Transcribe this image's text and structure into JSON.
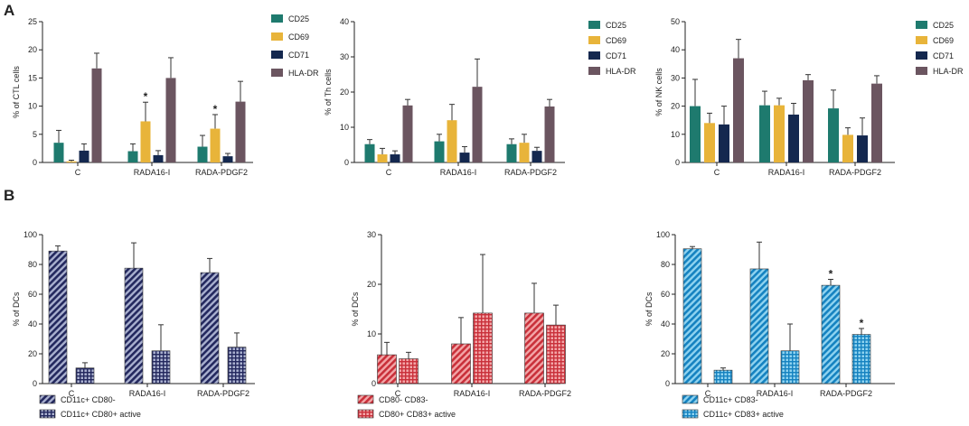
{
  "panel_labels": [
    "A",
    "B"
  ],
  "colors": {
    "CD25": "#1e7a6e",
    "CD69": "#e8b43a",
    "CD71": "#14284f",
    "HLA-DR": "#6b5560",
    "navy_stripe": "#23285e",
    "navy_bg": "#a9b0cf",
    "red_stripe": "#c9303a",
    "red_bg": "#f3a6a8",
    "blue_stripe": "#1582c0",
    "blue_bg": "#8fd3f0"
  },
  "chart_data": [
    {
      "id": "A1",
      "type": "bar",
      "ylabel": "% of CTL cells",
      "ylim": [
        0,
        25
      ],
      "yticks": [
        0,
        5,
        10,
        15,
        20,
        25
      ],
      "categories": [
        "C",
        "RADA16-I",
        "RADA-PDGF2"
      ],
      "legend": [
        "CD25",
        "CD69",
        "CD71",
        "HLA-DR"
      ],
      "series": [
        {
          "name": "CD25",
          "values": [
            3.5,
            2.0,
            2.8
          ],
          "errors": [
            2.2,
            1.3,
            2.0
          ]
        },
        {
          "name": "CD69",
          "values": [
            0.2,
            7.3,
            6.0
          ],
          "errors": [
            0.2,
            3.4,
            2.5
          ]
        },
        {
          "name": "CD71",
          "values": [
            2.1,
            1.3,
            1.1
          ],
          "errors": [
            1.2,
            0.8,
            0.5
          ]
        },
        {
          "name": "HLA-DR",
          "values": [
            16.7,
            15.0,
            10.8
          ],
          "errors": [
            2.7,
            3.6,
            3.6
          ]
        }
      ],
      "significance": [
        "*",
        "*"
      ]
    },
    {
      "id": "A2",
      "type": "bar",
      "ylabel": "% of Th cells",
      "ylim": [
        0,
        40
      ],
      "yticks": [
        0,
        10,
        20,
        30,
        40
      ],
      "categories": [
        "C",
        "RADA16-I",
        "RADA-PDGF2"
      ],
      "legend": [
        "CD25",
        "CD69",
        "CD71",
        "HLA-DR"
      ],
      "series": [
        {
          "name": "CD25",
          "values": [
            5.2,
            6.0,
            5.2
          ],
          "errors": [
            1.3,
            2.0,
            1.5
          ]
        },
        {
          "name": "CD69",
          "values": [
            2.3,
            12.0,
            5.6
          ],
          "errors": [
            1.7,
            4.5,
            2.4
          ]
        },
        {
          "name": "CD71",
          "values": [
            2.3,
            2.8,
            3.3
          ],
          "errors": [
            1.0,
            1.7,
            1.0
          ]
        },
        {
          "name": "HLA-DR",
          "values": [
            16.2,
            21.5,
            15.9
          ],
          "errors": [
            1.7,
            7.9,
            2.0
          ]
        }
      ]
    },
    {
      "id": "A3",
      "type": "bar",
      "ylabel": "% of NK cells",
      "ylim": [
        0,
        50
      ],
      "yticks": [
        0,
        10,
        20,
        30,
        40,
        50
      ],
      "categories": [
        "C",
        "RADA16-I",
        "RADA-PDGF2"
      ],
      "legend": [
        "CD25",
        "CD69",
        "CD71",
        "HLA-DR"
      ],
      "series": [
        {
          "name": "CD25",
          "values": [
            20.0,
            20.3,
            19.2
          ],
          "errors": [
            9.5,
            5.0,
            6.5
          ]
        },
        {
          "name": "CD69",
          "values": [
            14.0,
            20.3,
            9.8
          ],
          "errors": [
            3.5,
            2.5,
            2.5
          ]
        },
        {
          "name": "CD71",
          "values": [
            13.5,
            17.0,
            9.6
          ],
          "errors": [
            6.5,
            4.0,
            6.2
          ]
        },
        {
          "name": "HLA-DR",
          "values": [
            37.0,
            29.2,
            28.0
          ],
          "errors": [
            6.7,
            2.0,
            2.8
          ]
        }
      ]
    },
    {
      "id": "B1",
      "type": "bar",
      "ylabel": "% of DCs",
      "ylim": [
        0,
        100
      ],
      "yticks": [
        0,
        20,
        40,
        60,
        80,
        100
      ],
      "categories": [
        "C",
        "RADA16-I",
        "RADA-PDGF2"
      ],
      "legend": [
        "CD11c+ CD80-",
        "CD11c+ CD80+ active"
      ],
      "series": [
        {
          "name": "CD11c+ CD80-",
          "values": [
            89.0,
            77.5,
            74.5
          ],
          "errors": [
            3.5,
            17.0,
            9.5
          ]
        },
        {
          "name": "CD11c+ CD80+ active",
          "values": [
            10.5,
            22.0,
            24.5
          ],
          "errors": [
            3.5,
            17.5,
            9.5
          ]
        }
      ]
    },
    {
      "id": "B2",
      "type": "bar",
      "ylabel": "% of DCs",
      "ylim": [
        0,
        30
      ],
      "yticks": [
        0,
        10,
        20,
        30
      ],
      "categories": [
        "C",
        "RADA16-I",
        "RADA-PDGF2"
      ],
      "legend": [
        "CD80- CD83-",
        "CD80+ CD83+ active"
      ],
      "series": [
        {
          "name": "CD80- CD83-",
          "values": [
            5.8,
            8.0,
            14.2
          ],
          "errors": [
            2.5,
            5.3,
            6.0
          ]
        },
        {
          "name": "CD80+ CD83+ active",
          "values": [
            5.0,
            14.2,
            11.8
          ],
          "errors": [
            1.3,
            11.8,
            4.0
          ]
        }
      ]
    },
    {
      "id": "B3",
      "type": "bar",
      "ylabel": "% of DCs",
      "ylim": [
        0,
        100
      ],
      "yticks": [
        0,
        20,
        40,
        60,
        80,
        100
      ],
      "categories": [
        "C",
        "RADA16-I",
        "RADA-PDGF2"
      ],
      "legend": [
        "CD11c+ CD83-",
        "CD11c+ CD83+ active"
      ],
      "series": [
        {
          "name": "CD11c+ CD83-",
          "values": [
            90.5,
            77.0,
            66.0
          ],
          "errors": [
            1.5,
            18.0,
            4.0
          ]
        },
        {
          "name": "CD11c+ CD83+ active",
          "values": [
            9.0,
            22.0,
            33.0
          ],
          "errors": [
            1.5,
            18.0,
            4.0
          ]
        }
      ],
      "significance": [
        "*",
        "*"
      ]
    }
  ]
}
